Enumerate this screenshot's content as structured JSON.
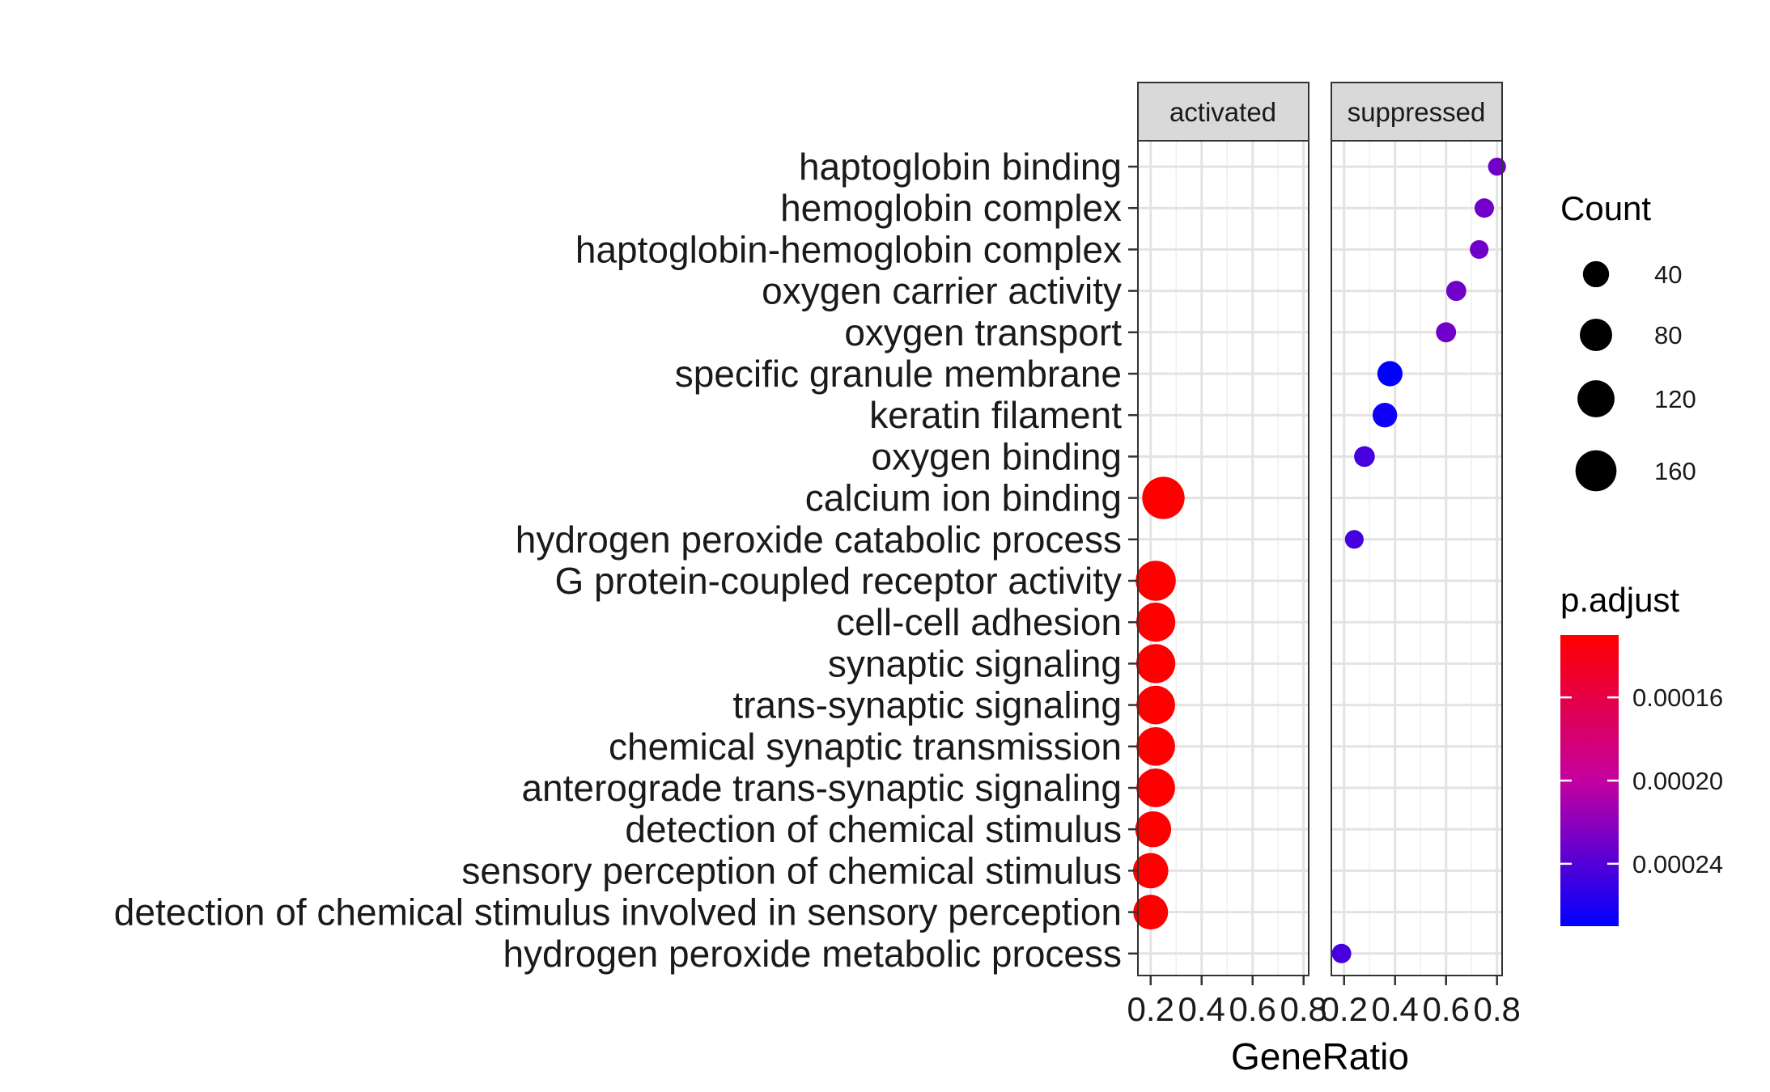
{
  "chart_data": {
    "type": "scatter",
    "xlabel": "GeneRatio",
    "xlim": [
      0.15,
      0.82
    ],
    "x_ticks": [
      0.2,
      0.4,
      0.6,
      0.8
    ],
    "x_tick_labels": [
      "0.2",
      "0.4",
      "0.6",
      "0.8"
    ],
    "grid": true,
    "panels": [
      "activated",
      "suppressed"
    ],
    "categories": [
      "haptoglobin binding",
      "hemoglobin complex",
      "haptoglobin-hemoglobin complex",
      "oxygen carrier activity",
      "oxygen transport",
      "specific granule membrane",
      "keratin filament",
      "oxygen binding",
      "calcium ion binding",
      "hydrogen peroxide catabolic process",
      "G protein-coupled receptor activity",
      "cell-cell adhesion",
      "synaptic signaling",
      "trans-synaptic signaling",
      "chemical synaptic transmission",
      "anterograde trans-synaptic signaling",
      "detection of chemical stimulus",
      "sensory perception of chemical stimulus",
      "detection of chemical stimulus involved in sensory perception",
      "hydrogen peroxide metabolic process"
    ],
    "points": [
      {
        "panel": "activated",
        "term": "calcium ion binding",
        "gene_ratio": 0.25,
        "count": 175,
        "p_adjust": 0.00013
      },
      {
        "panel": "activated",
        "term": "G protein-coupled receptor activity",
        "gene_ratio": 0.22,
        "count": 150,
        "p_adjust": 0.00013
      },
      {
        "panel": "activated",
        "term": "cell-cell adhesion",
        "gene_ratio": 0.22,
        "count": 140,
        "p_adjust": 0.00013
      },
      {
        "panel": "activated",
        "term": "synaptic signaling",
        "gene_ratio": 0.22,
        "count": 140,
        "p_adjust": 0.00013
      },
      {
        "panel": "activated",
        "term": "trans-synaptic signaling",
        "gene_ratio": 0.22,
        "count": 135,
        "p_adjust": 0.00013
      },
      {
        "panel": "activated",
        "term": "chemical synaptic transmission",
        "gene_ratio": 0.22,
        "count": 135,
        "p_adjust": 0.00013
      },
      {
        "panel": "activated",
        "term": "anterograde trans-synaptic signaling",
        "gene_ratio": 0.22,
        "count": 135,
        "p_adjust": 0.00013
      },
      {
        "panel": "activated",
        "term": "detection of chemical stimulus",
        "gene_ratio": 0.21,
        "count": 110,
        "p_adjust": 0.00013
      },
      {
        "panel": "activated",
        "term": "sensory perception of chemical stimulus",
        "gene_ratio": 0.2,
        "count": 105,
        "p_adjust": 0.00013
      },
      {
        "panel": "activated",
        "term": "detection of chemical stimulus involved in sensory perception",
        "gene_ratio": 0.2,
        "count": 100,
        "p_adjust": 0.00013
      },
      {
        "panel": "suppressed",
        "term": "haptoglobin binding",
        "gene_ratio": 0.8,
        "count": 8,
        "p_adjust": 0.00023
      },
      {
        "panel": "suppressed",
        "term": "hemoglobin complex",
        "gene_ratio": 0.75,
        "count": 12,
        "p_adjust": 0.00023
      },
      {
        "panel": "suppressed",
        "term": "haptoglobin-hemoglobin complex",
        "gene_ratio": 0.73,
        "count": 10,
        "p_adjust": 0.00023
      },
      {
        "panel": "suppressed",
        "term": "oxygen carrier activity",
        "gene_ratio": 0.64,
        "count": 14,
        "p_adjust": 0.00023
      },
      {
        "panel": "suppressed",
        "term": "oxygen transport",
        "gene_ratio": 0.6,
        "count": 14,
        "p_adjust": 0.00023
      },
      {
        "panel": "suppressed",
        "term": "specific granule membrane",
        "gene_ratio": 0.38,
        "count": 35,
        "p_adjust": 0.00027
      },
      {
        "panel": "suppressed",
        "term": "keratin filament",
        "gene_ratio": 0.36,
        "count": 32,
        "p_adjust": 0.000265
      },
      {
        "panel": "suppressed",
        "term": "oxygen binding",
        "gene_ratio": 0.28,
        "count": 16,
        "p_adjust": 0.000245
      },
      {
        "panel": "suppressed",
        "term": "hydrogen peroxide catabolic process",
        "gene_ratio": 0.24,
        "count": 10,
        "p_adjust": 0.000245
      },
      {
        "panel": "suppressed",
        "term": "hydrogen peroxide metabolic process",
        "gene_ratio": 0.19,
        "count": 12,
        "p_adjust": 0.000245
      }
    ],
    "size_legend": {
      "title": "Count",
      "values": [
        40,
        80,
        120,
        160
      ],
      "labels": [
        "40",
        "80",
        "120",
        "160"
      ]
    },
    "color_legend": {
      "title": "p.adjust",
      "range": [
        0.00013,
        0.00027
      ],
      "ticks": [
        0.00016,
        0.0002,
        0.00024
      ],
      "tick_labels": [
        "0.00016",
        "0.00020",
        "0.00024"
      ],
      "low_color": "#ff0000",
      "high_color": "#0000ff"
    }
  }
}
